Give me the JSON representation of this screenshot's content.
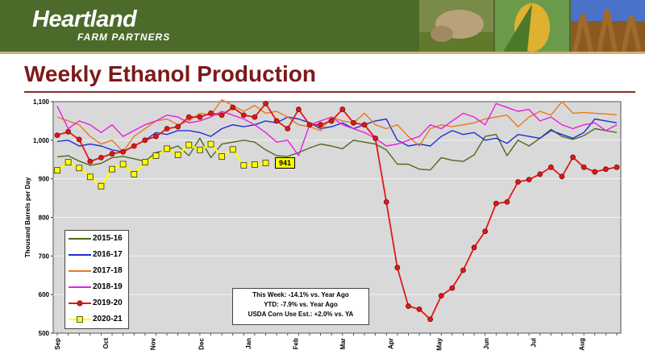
{
  "header": {
    "logo_main": "Heartland",
    "logo_sub": "FARM PARTNERS",
    "title": "Weekly Ethanol Production"
  },
  "colors": {
    "banner": "#4c6a2a",
    "title": "#7b1a1a",
    "plot_bg": "#d9d9d9"
  },
  "notes": {
    "line1": "This Week:  -14.1% vs. Year Ago",
    "line2": "YTD:  -7.9% vs. Year Ago",
    "line3": "USDA Corn Use Est.: +2.0% vs. YA"
  },
  "callout": "941",
  "chart_data": {
    "type": "line",
    "ylabel": "Thousand Barrels per Day",
    "ylim": [
      500,
      1100
    ],
    "yticks": [
      500,
      600,
      700,
      800,
      900,
      1000,
      1100
    ],
    "ytick_labels": [
      "500",
      "600",
      "700",
      "800",
      "900",
      "1,000",
      "1,100"
    ],
    "weeks": 52,
    "month_labels": [
      "Sep",
      "Oct",
      "Nov",
      "Dec",
      "Jan",
      "Feb",
      "Mar",
      "Apr",
      "May",
      "Jun",
      "Jul",
      "Aug"
    ],
    "month_week_index": [
      0,
      4.4,
      8.7,
      13.1,
      17.4,
      21.7,
      26.0,
      30.4,
      34.8,
      39.1,
      43.4,
      47.8
    ],
    "grid": true,
    "legend": "bottom-left",
    "series": [
      {
        "name": "2015-16",
        "color": "#4d6b1f",
        "marker": "none",
        "values": [
          957,
          960,
          946,
          935,
          940,
          955,
          958,
          952,
          945,
          968,
          975,
          985,
          960,
          1005,
          955,
          990,
          995,
          1000,
          995,
          975,
          960,
          958,
          968,
          980,
          990,
          985,
          978,
          1000,
          995,
          990,
          975,
          938,
          938,
          925,
          923,
          955,
          948,
          945,
          962,
          1010,
          1015,
          960,
          1000,
          985,
          1005,
          1028,
          1010,
          1002,
          1012,
          1030,
          1025,
          1020
        ]
      },
      {
        "name": "2016-17",
        "color": "#1f2ed8",
        "marker": "none",
        "values": [
          997,
          1000,
          985,
          990,
          985,
          975,
          970,
          985,
          1000,
          1020,
          1015,
          1025,
          1025,
          1020,
          1010,
          1030,
          1040,
          1035,
          1040,
          1050,
          1045,
          1060,
          1055,
          1045,
          1030,
          1035,
          1045,
          1030,
          1040,
          1050,
          1055,
          1000,
          985,
          990,
          985,
          1010,
          1025,
          1015,
          1020,
          1000,
          1005,
          992,
          1015,
          1010,
          1005,
          1025,
          1015,
          1005,
          1020,
          1055,
          1050,
          1045
        ]
      },
      {
        "name": "2017-18",
        "color": "#e8781e",
        "marker": "none",
        "values": [
          1060,
          1050,
          1040,
          1010,
          990,
          1000,
          970,
          1010,
          1030,
          1050,
          1055,
          1040,
          1050,
          1070,
          1065,
          1105,
          1090,
          1075,
          1090,
          1070,
          1075,
          1060,
          1040,
          1035,
          1025,
          1060,
          1050,
          1045,
          1070,
          1040,
          1030,
          1040,
          1010,
          985,
          1030,
          1040,
          1035,
          1040,
          1045,
          1055,
          1060,
          1065,
          1035,
          1060,
          1075,
          1065,
          1100,
          1070,
          1072,
          1070,
          1068,
          1066
        ]
      },
      {
        "name": "2018-19",
        "color": "#e81ee0",
        "marker": "none",
        "values": [
          1088,
          1030,
          1050,
          1040,
          1020,
          1040,
          1010,
          1025,
          1040,
          1050,
          1065,
          1060,
          1045,
          1050,
          1060,
          1075,
          1065,
          1055,
          1040,
          1020,
          995,
          1000,
          960,
          1040,
          1050,
          1060,
          1040,
          1030,
          1020,
          1005,
          985,
          990,
          1000,
          1010,
          1040,
          1030,
          1050,
          1070,
          1060,
          1040,
          1095,
          1085,
          1075,
          1080,
          1050,
          1060,
          1040,
          1030,
          1040,
          1045,
          1025,
          1040
        ]
      },
      {
        "name": "2019-20",
        "color": "#e01818",
        "marker": "circle",
        "values": [
          1013,
          1022,
          1002,
          945,
          955,
          965,
          970,
          985,
          1000,
          1010,
          1030,
          1035,
          1060,
          1060,
          1070,
          1065,
          1085,
          1065,
          1060,
          1095,
          1050,
          1030,
          1080,
          1040,
          1040,
          1050,
          1080,
          1045,
          1040,
          1005,
          840,
          670,
          570,
          562,
          536,
          597,
          617,
          663,
          722,
          764,
          836,
          840,
          892,
          898,
          912,
          930,
          906,
          956,
          930,
          918,
          925,
          930
        ]
      },
      {
        "name": "2020-21",
        "color": "#ffff00",
        "marker": "square",
        "values": [
          922,
          943,
          928,
          905,
          881,
          925,
          938,
          912,
          943,
          960,
          978,
          962,
          988,
          975,
          990,
          958,
          976,
          935,
          937,
          941
        ]
      }
    ]
  }
}
